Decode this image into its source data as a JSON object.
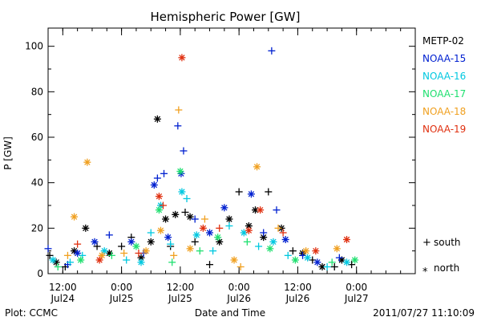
{
  "chart_data": {
    "type": "scatter",
    "title": "Hemispheric Power [GW]",
    "xlabel": "Date and Time",
    "ylabel": "P [GW]",
    "xlim": [
      "2011-07-24T09:00",
      "2011-07-27T12:00"
    ],
    "ylim": [
      0,
      108
    ],
    "yticks": [
      0,
      20,
      40,
      60,
      80,
      100
    ],
    "xticks": [
      {
        "time": "2011-07-24T12:00",
        "line1": "12:00",
        "line2": "Jul24"
      },
      {
        "time": "2011-07-25T00:00",
        "line1": "0:00",
        "line2": "Jul25"
      },
      {
        "time": "2011-07-25T12:00",
        "line1": "12:00",
        "line2": "Jul25"
      },
      {
        "time": "2011-07-26T00:00",
        "line1": "0:00",
        "line2": "Jul26"
      },
      {
        "time": "2011-07-26T12:00",
        "line1": "12:00",
        "line2": "Jul26"
      },
      {
        "time": "2011-07-27T00:00",
        "line1": "0:00",
        "line2": "Jul27"
      }
    ],
    "hemisphere_legend": [
      {
        "symbol": "+",
        "label": "south"
      },
      {
        "symbol": "*",
        "label": "north"
      }
    ],
    "series": [
      {
        "name": "METP-02",
        "color": "#000000",
        "points": [
          {
            "t": "2011-07-24T09:20",
            "v": 8,
            "h": "S"
          },
          {
            "t": "2011-07-24T10:40",
            "v": 5,
            "h": "N"
          },
          {
            "t": "2011-07-24T12:30",
            "v": 3,
            "h": "S"
          },
          {
            "t": "2011-07-24T14:20",
            "v": 10,
            "h": "N"
          },
          {
            "t": "2011-07-24T16:40",
            "v": 20,
            "h": "N"
          },
          {
            "t": "2011-07-24T19:00",
            "v": 12,
            "h": "S"
          },
          {
            "t": "2011-07-24T21:30",
            "v": 9,
            "h": "N"
          },
          {
            "t": "2011-07-25T00:00",
            "v": 12,
            "h": "S"
          },
          {
            "t": "2011-07-25T02:00",
            "v": 16,
            "h": "S"
          },
          {
            "t": "2011-07-25T04:00",
            "v": 7,
            "h": "N"
          },
          {
            "t": "2011-07-25T06:00",
            "v": 14,
            "h": "N"
          },
          {
            "t": "2011-07-25T07:20",
            "v": 68,
            "h": "N"
          },
          {
            "t": "2011-07-25T09:00",
            "v": 24,
            "h": "N"
          },
          {
            "t": "2011-07-25T10:00",
            "v": 12,
            "h": "S"
          },
          {
            "t": "2011-07-25T11:00",
            "v": 26,
            "h": "N"
          },
          {
            "t": "2011-07-25T13:00",
            "v": 27,
            "h": "S"
          },
          {
            "t": "2011-07-25T14:00",
            "v": 25,
            "h": "N"
          },
          {
            "t": "2011-07-25T15:00",
            "v": 14,
            "h": "S"
          },
          {
            "t": "2011-07-25T18:00",
            "v": 4,
            "h": "S"
          },
          {
            "t": "2011-07-25T20:00",
            "v": 14,
            "h": "N"
          },
          {
            "t": "2011-07-25T22:00",
            "v": 24,
            "h": "N"
          },
          {
            "t": "2011-07-26T00:00",
            "v": 36,
            "h": "S"
          },
          {
            "t": "2011-07-26T02:00",
            "v": 21,
            "h": "N"
          },
          {
            "t": "2011-07-26T03:20",
            "v": 28,
            "h": "N"
          },
          {
            "t": "2011-07-26T05:00",
            "v": 16,
            "h": "N"
          },
          {
            "t": "2011-07-26T06:00",
            "v": 36,
            "h": "S"
          },
          {
            "t": "2011-07-26T08:40",
            "v": 20,
            "h": "N"
          },
          {
            "t": "2011-07-26T11:00",
            "v": 10,
            "h": "S"
          },
          {
            "t": "2011-07-26T13:00",
            "v": 9,
            "h": "N"
          },
          {
            "t": "2011-07-26T15:00",
            "v": 6,
            "h": "S"
          },
          {
            "t": "2011-07-26T17:00",
            "v": 3,
            "h": "N"
          },
          {
            "t": "2011-07-26T19:30",
            "v": 3,
            "h": "S"
          },
          {
            "t": "2011-07-26T21:00",
            "v": 6,
            "h": "N"
          },
          {
            "t": "2011-07-26T23:00",
            "v": 4,
            "h": "S"
          }
        ]
      },
      {
        "name": "NOAA-15",
        "color": "#0020d0",
        "points": [
          {
            "t": "2011-07-24T09:00",
            "v": 11,
            "h": "S"
          },
          {
            "t": "2011-07-24T13:00",
            "v": 4,
            "h": "S"
          },
          {
            "t": "2011-07-24T15:00",
            "v": 9,
            "h": "N"
          },
          {
            "t": "2011-07-24T18:30",
            "v": 14,
            "h": "N"
          },
          {
            "t": "2011-07-24T21:30",
            "v": 17,
            "h": "S"
          },
          {
            "t": "2011-07-25T02:00",
            "v": 14,
            "h": "N"
          },
          {
            "t": "2011-07-25T04:30",
            "v": 9,
            "h": "S"
          },
          {
            "t": "2011-07-25T06:40",
            "v": 39,
            "h": "N"
          },
          {
            "t": "2011-07-25T07:20",
            "v": 42,
            "h": "S"
          },
          {
            "t": "2011-07-25T08:40",
            "v": 44,
            "h": "S"
          },
          {
            "t": "2011-07-25T09:30",
            "v": 16,
            "h": "N"
          },
          {
            "t": "2011-07-25T11:30",
            "v": 65,
            "h": "S"
          },
          {
            "t": "2011-07-25T12:10",
            "v": 44,
            "h": "N"
          },
          {
            "t": "2011-07-25T12:40",
            "v": 54,
            "h": "S"
          },
          {
            "t": "2011-07-25T15:00",
            "v": 24,
            "h": "S"
          },
          {
            "t": "2011-07-25T18:00",
            "v": 18,
            "h": "N"
          },
          {
            "t": "2011-07-25T21:00",
            "v": 29,
            "h": "N"
          },
          {
            "t": "2011-07-26T02:30",
            "v": 35,
            "h": "N"
          },
          {
            "t": "2011-07-26T05:00",
            "v": 18,
            "h": "S"
          },
          {
            "t": "2011-07-26T06:40",
            "v": 98,
            "h": "S"
          },
          {
            "t": "2011-07-26T07:40",
            "v": 28,
            "h": "S"
          },
          {
            "t": "2011-07-26T09:30",
            "v": 15,
            "h": "N"
          },
          {
            "t": "2011-07-26T13:00",
            "v": 8,
            "h": "S"
          },
          {
            "t": "2011-07-26T16:00",
            "v": 5,
            "h": "N"
          },
          {
            "t": "2011-07-26T20:30",
            "v": 7,
            "h": "S"
          }
        ]
      },
      {
        "name": "NOAA-16",
        "color": "#00c8e0",
        "points": [
          {
            "t": "2011-07-24T10:00",
            "v": 6,
            "h": "N"
          },
          {
            "t": "2011-07-24T13:30",
            "v": 5,
            "h": "S"
          },
          {
            "t": "2011-07-24T16:00",
            "v": 8,
            "h": "S"
          },
          {
            "t": "2011-07-24T20:30",
            "v": 10,
            "h": "N"
          },
          {
            "t": "2011-07-25T01:00",
            "v": 6,
            "h": "S"
          },
          {
            "t": "2011-07-25T04:00",
            "v": 5,
            "h": "N"
          },
          {
            "t": "2011-07-25T06:00",
            "v": 18,
            "h": "S"
          },
          {
            "t": "2011-07-25T08:00",
            "v": 30,
            "h": "N"
          },
          {
            "t": "2011-07-25T10:00",
            "v": 13,
            "h": "S"
          },
          {
            "t": "2011-07-25T12:20",
            "v": 36,
            "h": "N"
          },
          {
            "t": "2011-07-25T13:20",
            "v": 33,
            "h": "S"
          },
          {
            "t": "2011-07-25T15:20",
            "v": 17,
            "h": "N"
          },
          {
            "t": "2011-07-25T18:40",
            "v": 10,
            "h": "S"
          },
          {
            "t": "2011-07-25T22:00",
            "v": 21,
            "h": "S"
          },
          {
            "t": "2011-07-26T01:00",
            "v": 18,
            "h": "N"
          },
          {
            "t": "2011-07-26T04:00",
            "v": 12,
            "h": "S"
          },
          {
            "t": "2011-07-26T07:00",
            "v": 14,
            "h": "N"
          },
          {
            "t": "2011-07-26T10:00",
            "v": 8,
            "h": "S"
          },
          {
            "t": "2011-07-26T14:00",
            "v": 7,
            "h": "N"
          },
          {
            "t": "2011-07-26T18:00",
            "v": 3,
            "h": "S"
          },
          {
            "t": "2011-07-26T22:00",
            "v": 5,
            "h": "N"
          }
        ]
      },
      {
        "name": "NOAA-17",
        "color": "#20e070",
        "points": [
          {
            "t": "2011-07-24T11:00",
            "v": 3,
            "h": "S"
          },
          {
            "t": "2011-07-24T15:40",
            "v": 6,
            "h": "N"
          },
          {
            "t": "2011-07-24T22:00",
            "v": 8,
            "h": "S"
          },
          {
            "t": "2011-07-25T03:00",
            "v": 12,
            "h": "N"
          },
          {
            "t": "2011-07-25T07:40",
            "v": 28,
            "h": "N"
          },
          {
            "t": "2011-07-25T10:20",
            "v": 5,
            "h": "S"
          },
          {
            "t": "2011-07-25T12:00",
            "v": 45,
            "h": "N"
          },
          {
            "t": "2011-07-25T16:00",
            "v": 10,
            "h": "S"
          },
          {
            "t": "2011-07-25T19:40",
            "v": 16,
            "h": "N"
          },
          {
            "t": "2011-07-26T01:40",
            "v": 14,
            "h": "S"
          },
          {
            "t": "2011-07-26T06:20",
            "v": 11,
            "h": "N"
          },
          {
            "t": "2011-07-26T11:30",
            "v": 6,
            "h": "N"
          },
          {
            "t": "2011-07-26T19:00",
            "v": 5,
            "h": "S"
          },
          {
            "t": "2011-07-26T23:40",
            "v": 6,
            "h": "N"
          }
        ]
      },
      {
        "name": "NOAA-18",
        "color": "#f0a020",
        "points": [
          {
            "t": "2011-07-24T13:00",
            "v": 8,
            "h": "S"
          },
          {
            "t": "2011-07-24T14:20",
            "v": 25,
            "h": "N"
          },
          {
            "t": "2011-07-24T17:00",
            "v": 49,
            "h": "N"
          },
          {
            "t": "2011-07-24T20:00",
            "v": 8,
            "h": "N"
          },
          {
            "t": "2011-07-25T00:30",
            "v": 9,
            "h": "S"
          },
          {
            "t": "2011-07-25T05:00",
            "v": 10,
            "h": "N"
          },
          {
            "t": "2011-07-25T08:00",
            "v": 19,
            "h": "N"
          },
          {
            "t": "2011-07-25T10:40",
            "v": 8,
            "h": "S"
          },
          {
            "t": "2011-07-25T11:40",
            "v": 72,
            "h": "S"
          },
          {
            "t": "2011-07-25T14:00",
            "v": 11,
            "h": "N"
          },
          {
            "t": "2011-07-25T17:00",
            "v": 24,
            "h": "S"
          },
          {
            "t": "2011-07-25T23:00",
            "v": 6,
            "h": "N"
          },
          {
            "t": "2011-07-26T00:20",
            "v": 3,
            "h": "S"
          },
          {
            "t": "2011-07-26T03:40",
            "v": 47,
            "h": "N"
          },
          {
            "t": "2011-07-26T08:00",
            "v": 20,
            "h": "S"
          },
          {
            "t": "2011-07-26T13:40",
            "v": 10,
            "h": "N"
          },
          {
            "t": "2011-07-26T20:00",
            "v": 11,
            "h": "N"
          }
        ]
      },
      {
        "name": "NOAA-19",
        "color": "#e03010",
        "points": [
          {
            "t": "2011-07-24T15:00",
            "v": 13,
            "h": "S"
          },
          {
            "t": "2011-07-24T19:30",
            "v": 6,
            "h": "N"
          },
          {
            "t": "2011-07-25T03:30",
            "v": 9,
            "h": "S"
          },
          {
            "t": "2011-07-25T07:40",
            "v": 34,
            "h": "N"
          },
          {
            "t": "2011-07-25T08:30",
            "v": 30,
            "h": "S"
          },
          {
            "t": "2011-07-25T12:20",
            "v": 95,
            "h": "N"
          },
          {
            "t": "2011-07-25T16:40",
            "v": 20,
            "h": "N"
          },
          {
            "t": "2011-07-25T20:00",
            "v": 20,
            "h": "S"
          },
          {
            "t": "2011-07-26T02:00",
            "v": 19,
            "h": "N"
          },
          {
            "t": "2011-07-26T04:20",
            "v": 28,
            "h": "N"
          },
          {
            "t": "2011-07-26T09:00",
            "v": 18,
            "h": "S"
          },
          {
            "t": "2011-07-26T15:40",
            "v": 10,
            "h": "N"
          },
          {
            "t": "2011-07-26T22:00",
            "v": 15,
            "h": "N"
          }
        ]
      }
    ]
  },
  "footer": {
    "left": "Plot: CCMC",
    "right": "2011/07/27 11:10:09"
  }
}
